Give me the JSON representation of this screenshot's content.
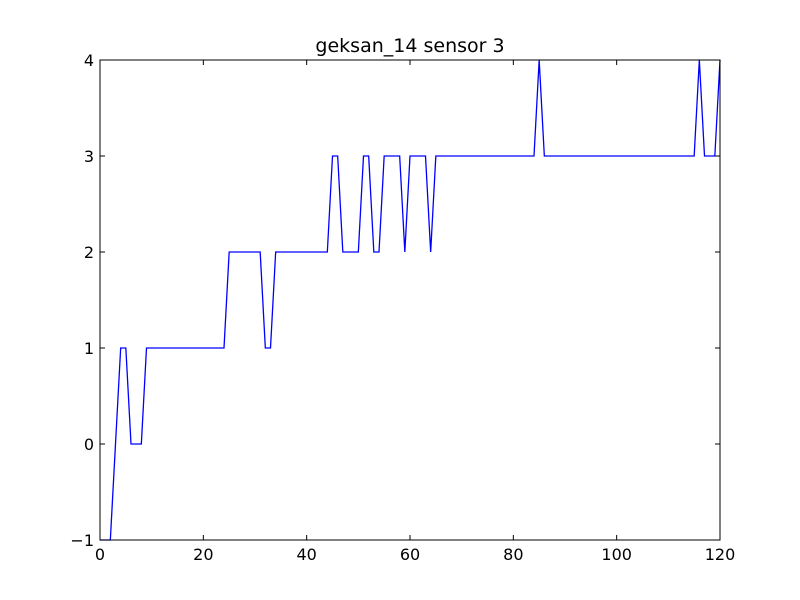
{
  "chart_data": {
    "type": "line",
    "title": "geksan_14 sensor 3",
    "xlabel": "",
    "ylabel": "",
    "xlim": [
      0,
      120
    ],
    "ylim": [
      -1,
      4
    ],
    "xticks": [
      0,
      20,
      40,
      60,
      80,
      100,
      120
    ],
    "yticks": [
      -1,
      0,
      1,
      2,
      3,
      4
    ],
    "grid": false,
    "series": [
      {
        "color": "#0000ff",
        "x": [
          0,
          1,
          2,
          3,
          4,
          5,
          6,
          7,
          8,
          9,
          10,
          11,
          12,
          13,
          14,
          15,
          16,
          17,
          18,
          19,
          20,
          21,
          22,
          23,
          24,
          25,
          26,
          27,
          28,
          29,
          30,
          31,
          32,
          33,
          34,
          35,
          36,
          37,
          38,
          39,
          40,
          41,
          42,
          43,
          44,
          45,
          46,
          47,
          48,
          49,
          50,
          51,
          52,
          53,
          54,
          55,
          56,
          57,
          58,
          59,
          60,
          61,
          62,
          63,
          64,
          65,
          66,
          67,
          68,
          69,
          70,
          71,
          72,
          73,
          74,
          75,
          76,
          77,
          78,
          79,
          80,
          81,
          82,
          83,
          84,
          85,
          86,
          87,
          88,
          89,
          90,
          91,
          92,
          93,
          94,
          95,
          96,
          97,
          98,
          99,
          100,
          101,
          102,
          103,
          104,
          105,
          106,
          107,
          108,
          109,
          110,
          111,
          112,
          113,
          114,
          115,
          116,
          117,
          118,
          119,
          120
        ],
        "y": [
          -1,
          -1,
          -1,
          0,
          1,
          1,
          0,
          0,
          0,
          1,
          1,
          1,
          1,
          1,
          1,
          1,
          1,
          1,
          1,
          1,
          1,
          1,
          1,
          1,
          1,
          2,
          2,
          2,
          2,
          2,
          2,
          2,
          1,
          1,
          2,
          2,
          2,
          2,
          2,
          2,
          2,
          2,
          2,
          2,
          2,
          3,
          3,
          2,
          2,
          2,
          2,
          3,
          3,
          2,
          2,
          3,
          3,
          3,
          3,
          2,
          3,
          3,
          3,
          3,
          2,
          3,
          3,
          3,
          3,
          3,
          3,
          3,
          3,
          3,
          3,
          3,
          3,
          3,
          3,
          3,
          3,
          3,
          3,
          3,
          3,
          4,
          3,
          3,
          3,
          3,
          3,
          3,
          3,
          3,
          3,
          3,
          3,
          3,
          3,
          3,
          3,
          3,
          3,
          3,
          3,
          3,
          3,
          3,
          3,
          3,
          3,
          3,
          3,
          3,
          3,
          3,
          4,
          3,
          3,
          3,
          4
        ]
      }
    ]
  }
}
